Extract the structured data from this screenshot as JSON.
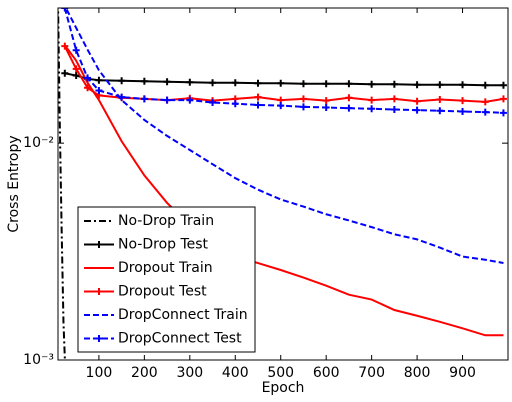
{
  "chart_data": {
    "type": "line",
    "xlabel": "Epoch",
    "ylabel": "Cross Entropy",
    "xlim": [
      10,
      1000
    ],
    "xticks": [
      100,
      200,
      300,
      400,
      500,
      600,
      700,
      800,
      900
    ],
    "ylim": [
      0.001,
      0.042
    ],
    "log_y": true,
    "yticks": [
      {
        "value": 0.001,
        "label": "10⁻³"
      },
      {
        "value": 0.01,
        "label": "10⁻²"
      }
    ],
    "legend": "lower left",
    "series": [
      {
        "name": "No-Drop Train",
        "color": "#000000",
        "linestyle": "dashdot",
        "x": [
          10,
          14,
          18,
          22,
          26
        ],
        "values": [
          0.045,
          0.012,
          0.004,
          0.0015,
          0.0009
        ]
      },
      {
        "name": "No-Drop Test",
        "color": "#000000",
        "linestyle": "solid",
        "marker": "+",
        "x": [
          25,
          50,
          75,
          100,
          150,
          200,
          250,
          300,
          350,
          400,
          450,
          500,
          550,
          600,
          650,
          700,
          750,
          800,
          850,
          900,
          950,
          990
        ],
        "values": [
          0.021,
          0.0205,
          0.0198,
          0.0195,
          0.0194,
          0.0193,
          0.0192,
          0.0191,
          0.019,
          0.019,
          0.0189,
          0.0189,
          0.0188,
          0.0188,
          0.0188,
          0.0187,
          0.0187,
          0.0186,
          0.0186,
          0.0186,
          0.0185,
          0.0185
        ]
      },
      {
        "name": "Dropout Train",
        "color": "#ff0000",
        "linestyle": "solid",
        "x": [
          25,
          50,
          75,
          100,
          150,
          200,
          250,
          300,
          350,
          400,
          450,
          500,
          550,
          600,
          650,
          700,
          750,
          800,
          850,
          900,
          950,
          990
        ],
        "values": [
          0.0283,
          0.024,
          0.019,
          0.0158,
          0.0102,
          0.0071,
          0.0053,
          0.0042,
          0.0035,
          0.003,
          0.0028,
          0.0026,
          0.0024,
          0.0022,
          0.002,
          0.0019,
          0.0017,
          0.0016,
          0.0015,
          0.0014,
          0.0013,
          0.0013
        ]
      },
      {
        "name": "Dropout Test",
        "color": "#ff0000",
        "linestyle": "solid",
        "marker": "+",
        "x": [
          25,
          50,
          75,
          100,
          150,
          200,
          250,
          300,
          350,
          400,
          450,
          500,
          550,
          600,
          650,
          700,
          750,
          800,
          850,
          900,
          950,
          990
        ],
        "values": [
          0.028,
          0.022,
          0.018,
          0.0166,
          0.0162,
          0.016,
          0.0158,
          0.0161,
          0.0157,
          0.016,
          0.0163,
          0.0158,
          0.016,
          0.0157,
          0.0162,
          0.0158,
          0.016,
          0.0156,
          0.0159,
          0.0157,
          0.0155,
          0.016
        ]
      },
      {
        "name": "DropConnect Train",
        "color": "#0000ff",
        "linestyle": "dashed",
        "x": [
          20,
          50,
          75,
          100,
          150,
          200,
          250,
          300,
          350,
          400,
          450,
          500,
          550,
          600,
          650,
          700,
          750,
          800,
          850,
          900,
          950,
          990
        ],
        "values": [
          0.045,
          0.034,
          0.027,
          0.0217,
          0.0158,
          0.0128,
          0.0108,
          0.0093,
          0.008,
          0.0069,
          0.0061,
          0.0055,
          0.0051,
          0.0047,
          0.0044,
          0.0041,
          0.0038,
          0.0036,
          0.0033,
          0.003,
          0.0029,
          0.0028
        ]
      },
      {
        "name": "DropConnect Test",
        "color": "#0000ff",
        "linestyle": "dashed",
        "marker": "+",
        "x": [
          25,
          50,
          75,
          100,
          150,
          200,
          250,
          300,
          350,
          400,
          450,
          500,
          550,
          600,
          650,
          700,
          750,
          800,
          850,
          900,
          950,
          990
        ],
        "values": [
          0.042,
          0.0268,
          0.02,
          0.0175,
          0.0163,
          0.016,
          0.0158,
          0.0158,
          0.0154,
          0.0152,
          0.015,
          0.0149,
          0.0147,
          0.0146,
          0.0145,
          0.0144,
          0.0143,
          0.0142,
          0.0141,
          0.014,
          0.0139,
          0.0138
        ]
      }
    ]
  }
}
